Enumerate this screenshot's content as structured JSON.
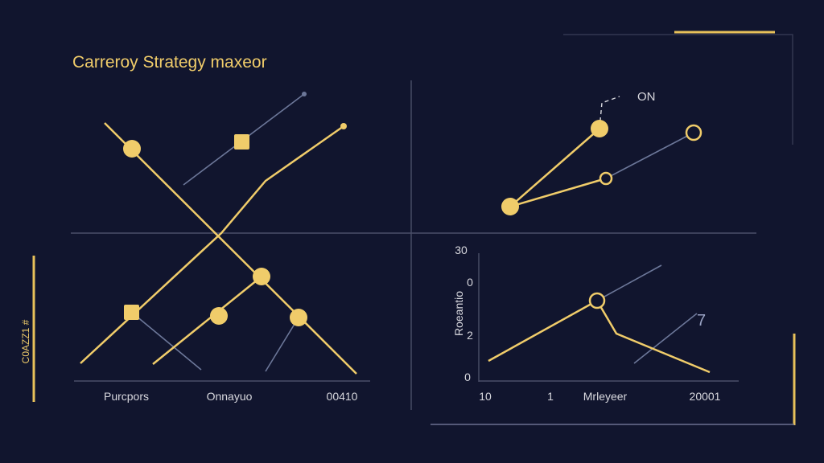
{
  "header": {
    "title": "Carreroy Strategy maxeor",
    "side_label": "C0AZZ1 #"
  },
  "left_panel": {
    "x_labels": [
      "Purcpors",
      "Onnayuo",
      "00410"
    ]
  },
  "top_right_panel": {
    "annotation": "ON"
  },
  "bottom_right_panel": {
    "y_label": "Roeantio",
    "y_labels": [
      "30",
      "0",
      "2",
      "0"
    ],
    "x_labels": [
      "10",
      "1",
      "Mrleyeer",
      "20001"
    ],
    "annotation": "7"
  }
}
